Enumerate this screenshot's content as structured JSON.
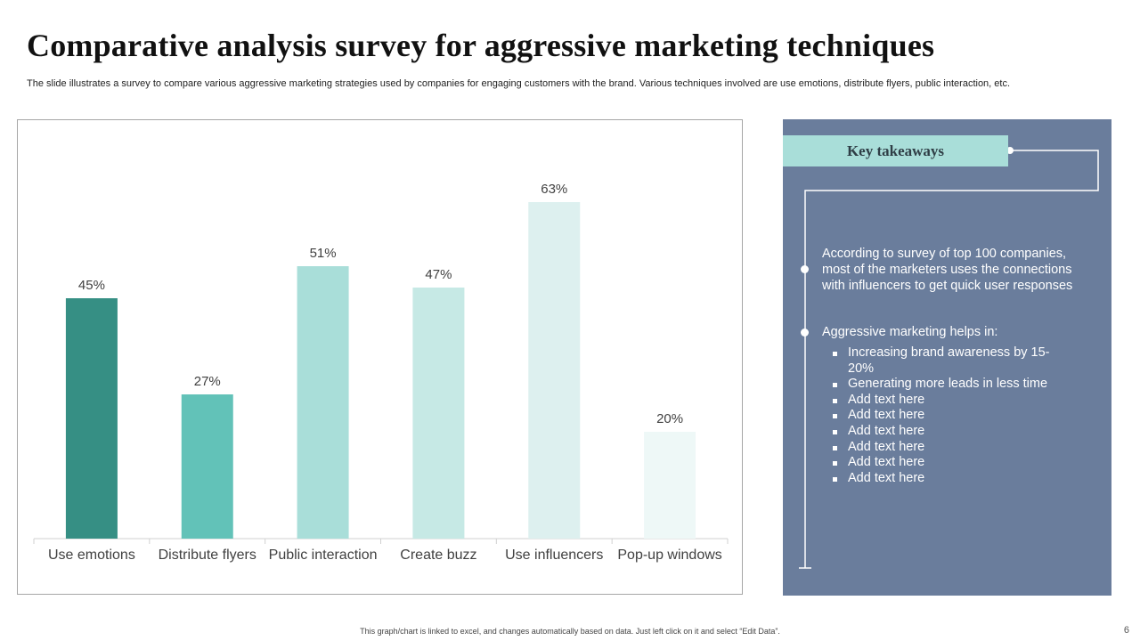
{
  "page": {
    "title": "Comparative analysis survey for aggressive marketing techniques",
    "subtitle": "The slide illustrates a survey to compare various aggressive marketing strategies used by companies for engaging customers with the brand. Various techniques involved are use emotions, distribute flyers, public interaction, etc.",
    "footer": "This graph/chart is linked to excel, and changes automatically based on data. Just left click on it and select “Edit Data”.",
    "page_number": "6"
  },
  "chart_data": {
    "type": "bar",
    "title": "",
    "xlabel": "",
    "ylabel": "",
    "ylim": [
      0,
      70
    ],
    "grid": false,
    "categories": [
      "Use emotions",
      "Distribute flyers",
      "Public interaction",
      "Create buzz",
      "Use influencers",
      "Pop-up windows"
    ],
    "values": [
      45,
      27,
      51,
      47,
      63,
      20
    ],
    "labels": [
      "45%",
      "27%",
      "51%",
      "47%",
      "63%",
      "20%"
    ],
    "colors": [
      "#368f84",
      "#62c2b8",
      "#a9ded9",
      "#c6e9e5",
      "#ddf0ef",
      "#eef8f7"
    ]
  },
  "takeaways": {
    "heading": "Key takeaways",
    "point1": "According to survey of top 100 companies, most of the marketers uses the connections with influencers to get quick user responses",
    "point2": "Aggressive marketing helps in:",
    "sub_items": [
      "Increasing brand awareness by 15-20%",
      "Generating more leads in less time",
      "Add text here",
      "Add text here",
      "Add text here",
      "Add text here",
      "Add text here",
      "Add text here"
    ]
  },
  "colors": {
    "panel_bg": "#6a7d9c",
    "heading_bg": "#a9ded9",
    "axis": "#d0d0d0"
  }
}
